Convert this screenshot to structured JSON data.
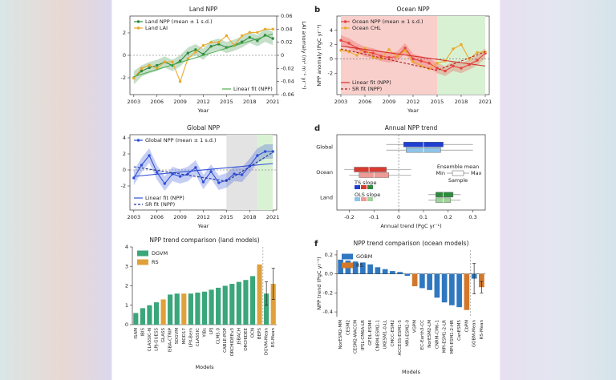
{
  "chart_data": [
    {
      "type": "line",
      "title": "Land NPP",
      "xlabel": "Year",
      "y2label": "LAI anomaly (m² m⁻² yr⁻¹)",
      "x": [
        2003,
        2004,
        2005,
        2006,
        2007,
        2008,
        2009,
        2010,
        2011,
        2012,
        2013,
        2014,
        2015,
        2016,
        2017,
        2018,
        2019,
        2020,
        2021
      ],
      "xlim": [
        2002.5,
        2021.5
      ],
      "xticks": [
        2003,
        2006,
        2009,
        2012,
        2015,
        2018,
        2021
      ],
      "ylim": [
        -3.5,
        3.5
      ],
      "yticks": [
        -2,
        0,
        2
      ],
      "y2lim": [
        -0.06,
        0.06
      ],
      "y2ticks": [
        0.06,
        0.04,
        0.02,
        0,
        -0.02,
        -0.04,
        -0.06
      ],
      "series": [
        {
          "name": "Land NPP (mean ± 1 s.d.)",
          "color": "#2e8b3e",
          "markers": true,
          "legend": "upper left",
          "values": [
            -2.0,
            -1.4,
            -1.1,
            -0.9,
            -0.6,
            -0.9,
            -0.5,
            0.2,
            0.5,
            0.1,
            0.8,
            1.0,
            0.7,
            0.9,
            1.2,
            1.6,
            1.3,
            1.8,
            1.5
          ],
          "sd": [
            0.6,
            0.5,
            0.5,
            0.5,
            0.5,
            0.5,
            0.5,
            0.5,
            0.5,
            0.5,
            0.5,
            0.5,
            0.5,
            0.5,
            0.5,
            0.5,
            0.5,
            0.6,
            0.6
          ]
        },
        {
          "name": "Land LAI",
          "color": "#eaa92a",
          "markers": true,
          "axis": "y2",
          "legend": "upper left",
          "values": [
            -0.035,
            -0.02,
            -0.015,
            -0.02,
            -0.01,
            -0.01,
            -0.04,
            -0.005,
            0.005,
            0.015,
            0.02,
            0.02,
            0.03,
            0.015,
            0.03,
            0.035,
            0.035,
            0.04,
            0.04
          ]
        },
        {
          "name": "Linear fit (NPP)",
          "color": "#4caf50",
          "legend": "lower right",
          "x": [
            2003,
            2021
          ],
          "values": [
            -1.9,
            1.9
          ]
        }
      ]
    },
    {
      "type": "line",
      "label": "b",
      "title": "Ocean NPP",
      "xlabel": "Year",
      "ylabel": "NPP anomaly (PgC yr⁻¹)",
      "x": [
        2003,
        2004,
        2005,
        2006,
        2007,
        2008,
        2009,
        2010,
        2011,
        2012,
        2013,
        2014,
        2015,
        2016,
        2017,
        2018,
        2019,
        2020,
        2021
      ],
      "xlim": [
        2002.5,
        2021.5
      ],
      "xticks": [
        2003,
        2006,
        2009,
        2012,
        2015,
        2018,
        2021
      ],
      "ylim": [
        -5,
        6
      ],
      "yticks": [
        -2,
        0,
        2,
        4
      ],
      "spans": [
        {
          "from": 2003,
          "to": 2015,
          "color": "#f8cfcb"
        },
        {
          "from": 2015,
          "to": 2021,
          "color": "#d9f1d3"
        }
      ],
      "series": [
        {
          "name": "Ocean NPP (mean ± 1 s.d.)",
          "color": "#e8413c",
          "markers": true,
          "legend": "upper left",
          "values": [
            2.6,
            2.2,
            1.5,
            1.0,
            0.8,
            0.4,
            0.2,
            0.3,
            1.5,
            0.0,
            -0.3,
            -0.6,
            -1.3,
            -1.7,
            -1.0,
            -1.3,
            -0.8,
            -0.2,
            0.8
          ],
          "sd": [
            0.7,
            0.7,
            0.7,
            0.7,
            0.7,
            0.7,
            0.7,
            0.7,
            0.7,
            0.7,
            0.7,
            0.7,
            0.7,
            0.7,
            0.7,
            0.7,
            0.7,
            0.7,
            0.7
          ]
        },
        {
          "name": "Ocean CHL",
          "color": "#eaa92a",
          "markers": true,
          "legend": "upper left",
          "values": [
            1.2,
            1.0,
            0.5,
            1.5,
            0.2,
            0.0,
            1.3,
            0.3,
            1.2,
            -0.4,
            -1.0,
            -1.4,
            -0.6,
            -0.3,
            1.4,
            2.0,
            0.0,
            0.9,
            1.0
          ]
        },
        {
          "name": "Linear fit (NPP)",
          "color": "#d62f2a",
          "legend": "lower left",
          "x": [
            2003,
            2021
          ],
          "values": [
            1.8,
            -1.0
          ]
        },
        {
          "name": "SR fit (NPP)",
          "color": "#b02020",
          "dash": true,
          "legend": "lower left",
          "x": [
            2003,
            2015,
            2021
          ],
          "values": [
            1.4,
            -1.6,
            1.0
          ]
        }
      ]
    },
    {
      "type": "line",
      "title": "Global NPP",
      "xlabel": "Year",
      "x": [
        2003,
        2004,
        2005,
        2006,
        2007,
        2008,
        2009,
        2010,
        2011,
        2012,
        2013,
        2014,
        2015,
        2016,
        2017,
        2018,
        2019,
        2020,
        2021
      ],
      "xlim": [
        2002.5,
        2021.5
      ],
      "xticks": [
        2003,
        2006,
        2009,
        2012,
        2015,
        2018,
        2021
      ],
      "ylim": [
        -5,
        4.4
      ],
      "yticks": [
        -2,
        0,
        2,
        4
      ],
      "spans": [
        {
          "from": 2015,
          "to": 2019,
          "color": "#e3e3e3"
        },
        {
          "from": 2019,
          "to": 2021,
          "color": "#daf2d4"
        }
      ],
      "series": [
        {
          "name": "Global NPP (mean ± 1 s.d.)",
          "color": "#2f4fd8",
          "markers": true,
          "legend": "upper left",
          "values": [
            -1.0,
            0.6,
            1.8,
            -0.3,
            -1.7,
            -0.5,
            -0.8,
            -0.5,
            0.3,
            -1.5,
            -0.2,
            -1.6,
            -1.3,
            -0.5,
            -0.6,
            0.5,
            1.8,
            2.3,
            2.3
          ],
          "sd": [
            0.9,
            0.9,
            0.9,
            0.9,
            0.9,
            0.9,
            0.9,
            0.9,
            0.9,
            0.9,
            0.9,
            0.9,
            0.9,
            0.9,
            0.9,
            0.9,
            0.9,
            0.9,
            0.9
          ]
        },
        {
          "name": "Linear fit (NPP)",
          "color": "#2f4fd8",
          "legend": "lower left",
          "x": [
            2003,
            2021
          ],
          "values": [
            -0.8,
            0.8
          ]
        },
        {
          "name": "SR fit (NPP)",
          "color": "#1a2f90",
          "dash": true,
          "legend": "lower left",
          "x": [
            2003,
            2015,
            2021
          ],
          "values": [
            0.4,
            -1.4,
            2.2
          ]
        }
      ]
    },
    {
      "type": "box",
      "label": "d",
      "title": "Annual NPP trend",
      "xlabel": "Annual trend (PgC yr⁻¹)",
      "categories": [
        "Global",
        "Ocean",
        "Land"
      ],
      "xlim": [
        -0.25,
        0.35
      ],
      "xticks": [
        -0.2,
        -0.1,
        0,
        0.1,
        0.2,
        0.3
      ],
      "series": [
        {
          "name": "TS slope",
          "colors": [
            "#1f3fd0",
            "#d83a30",
            "#2e8b3e"
          ],
          "min": [
            -0.05,
            -0.22,
            0.12
          ],
          "q1": [
            0.02,
            -0.18,
            0.15
          ],
          "median": [
            0.1,
            -0.12,
            0.18
          ],
          "q3": [
            0.18,
            -0.05,
            0.22
          ],
          "max": [
            0.3,
            0.05,
            0.25
          ]
        },
        {
          "name": "OLS slope",
          "colors": [
            "#8fc4e8",
            "#ef9a93",
            "#9fd39b"
          ],
          "min": [
            -0.05,
            -0.2,
            0.12
          ],
          "q1": [
            0.03,
            -0.16,
            0.15
          ],
          "median": [
            0.1,
            -0.1,
            0.18
          ],
          "q3": [
            0.17,
            -0.04,
            0.21
          ],
          "max": [
            0.3,
            0.05,
            0.25
          ]
        }
      ],
      "key": {
        "title": "Ensemble mean",
        "min": "Min",
        "max": "Max",
        "sample": "Sample"
      }
    },
    {
      "type": "bar",
      "title": "NPP trend comparison (land models)",
      "xlabel": "Models",
      "categories": [
        "ISAM",
        "IBIS",
        "CLASSIC-N",
        "LPJ-GUESS",
        "GLASS",
        "ISBA-CTRIP",
        "SDGVM",
        "MOD17",
        "LPX-Bern",
        "CLASSIC",
        "YIBs",
        "LPJ",
        "CLM5.0",
        "CABLE-POP",
        "ORCHIDEEv3",
        "JSBACH",
        "ORCHIDEE",
        "OCN",
        "BEPS",
        "DGVM-Mean",
        "RS-Mean"
      ],
      "values": [
        0.6,
        0.85,
        1.0,
        1.15,
        1.3,
        1.55,
        1.6,
        1.6,
        1.6,
        1.65,
        1.7,
        1.8,
        1.9,
        2.0,
        2.1,
        2.2,
        2.3,
        2.5,
        3.1,
        1.6,
        2.1
      ],
      "errors": [
        null,
        null,
        null,
        null,
        null,
        null,
        null,
        null,
        null,
        null,
        null,
        null,
        null,
        null,
        null,
        null,
        null,
        null,
        null,
        0.6,
        0.8
      ],
      "colors": [
        "#3aa67a",
        "#3aa67a",
        "#3aa67a",
        "#3aa67a",
        "#e0a13a",
        "#3aa67a",
        "#3aa67a",
        "#e0a13a",
        "#3aa67a",
        "#3aa67a",
        "#3aa67a",
        "#3aa67a",
        "#3aa67a",
        "#3aa67a",
        "#3aa67a",
        "#3aa67a",
        "#3aa67a",
        "#3aa67a",
        "#e0a13a",
        "#3aa67a",
        "#e0a13a"
      ],
      "legend_entries": [
        {
          "name": "DGVM",
          "color": "#3aa67a"
        },
        {
          "name": "RS",
          "color": "#e0a13a"
        }
      ],
      "ylim": [
        0,
        4
      ],
      "yticks": [
        0,
        1,
        2,
        3,
        4
      ]
    },
    {
      "type": "bar",
      "label": "f",
      "title": "NPP trend comparison (ocean models)",
      "xlabel": "Models",
      "ylabel": "NPP trend (PgC yr⁻¹)",
      "categories": [
        "NorESM2-MM",
        "CESM2",
        "CESM2-WACCM",
        "IPSL-CM6A-LR",
        "GFDL-ESM4",
        "CNRM-ESM2-1",
        "UKESM1-0-LL",
        "CMCC-ESM2",
        "ACCESS-ESM1-5",
        "MRI-ESM2-0",
        "VGPM",
        "EC-Earth3-CC",
        "NorESM2-LM",
        "CNRM-CM6-1",
        "MPI-ESM1-2-LR",
        "MPI-ESM1-2-HR",
        "CanESM5",
        "CbPM",
        "GOBM-Mean",
        "RS-Mean"
      ],
      "values": [
        0.15,
        0.14,
        0.13,
        0.12,
        0.1,
        0.07,
        0.05,
        0.03,
        0.02,
        -0.02,
        -0.13,
        -0.15,
        -0.17,
        -0.25,
        -0.3,
        -0.33,
        -0.35,
        -0.38,
        -0.05,
        -0.14
      ],
      "errors": [
        null,
        null,
        null,
        null,
        null,
        null,
        null,
        null,
        null,
        null,
        null,
        null,
        null,
        null,
        null,
        null,
        null,
        null,
        0.16,
        0.06
      ],
      "colors": [
        "#2f77c0",
        "#2f77c0",
        "#2f77c0",
        "#2f77c0",
        "#2f77c0",
        "#2f77c0",
        "#2f77c0",
        "#2f77c0",
        "#2f77c0",
        "#2f77c0",
        "#d2782a",
        "#2f77c0",
        "#2f77c0",
        "#2f77c0",
        "#2f77c0",
        "#2f77c0",
        "#2f77c0",
        "#d2782a",
        "#2f77c0",
        "#d2782a"
      ],
      "legend_entries": [
        {
          "name": "GOBM",
          "color": "#2f77c0"
        },
        {
          "name": "RS",
          "color": "#d2782a"
        }
      ],
      "ylim": [
        -0.45,
        0.25
      ],
      "yticks": [
        0.2,
        {
          "value": 0,
          "label": "0.0"
        },
        -0.2,
        -0.4
      ]
    }
  ]
}
